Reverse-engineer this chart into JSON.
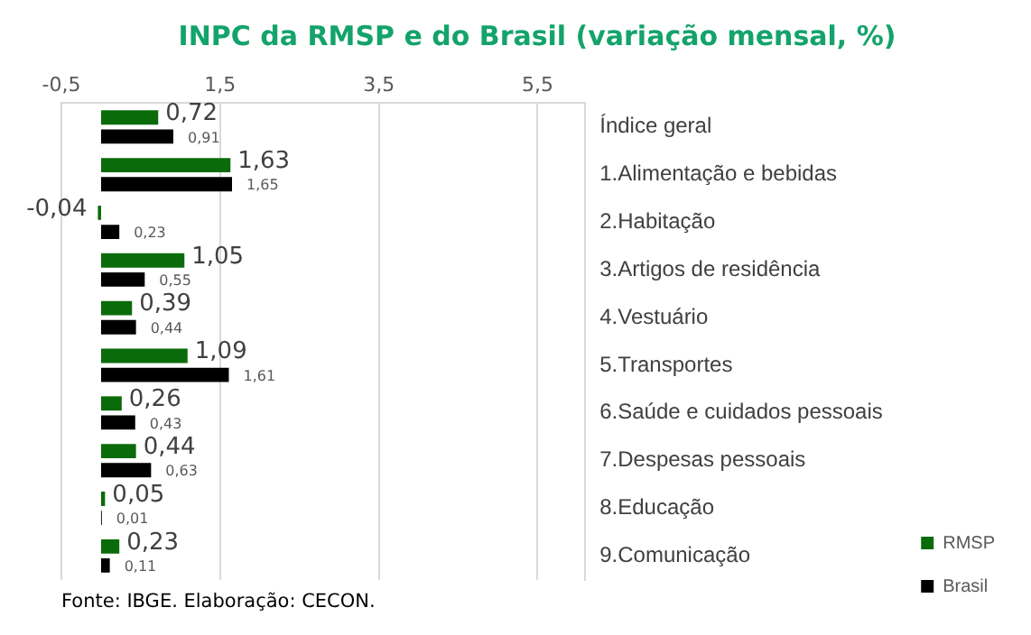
{
  "chart_data": {
    "type": "bar",
    "orientation": "horizontal",
    "title": "INPC da RMSP e do Brasil (variação mensal, %)",
    "annotations": [
      "Fonte: IBGE. Elaboração: CECON."
    ],
    "categories": [
      "Índice geral",
      "1.Alimentação e bebidas",
      "2.Habitação",
      "3.Artigos de residência",
      "4.Vestuário",
      "5.Transportes",
      "6.Saúde e cuidados pessoais",
      "7.Despesas pessoais",
      "8.Educação",
      "9.Comunicação"
    ],
    "series": [
      {
        "name": "RMSP",
        "color": "#0a6b0a",
        "values": [
          0.72,
          1.63,
          -0.04,
          1.05,
          0.39,
          1.09,
          0.26,
          0.44,
          0.05,
          0.23
        ],
        "value_labels": [
          "0,72",
          "1,63",
          "-0,04",
          "1,05",
          "0,39",
          "1,09",
          "0,26",
          "0,44",
          "0,05",
          "0,23"
        ]
      },
      {
        "name": "Brasil",
        "color": "#000000",
        "values": [
          0.91,
          1.65,
          0.23,
          0.55,
          0.44,
          1.61,
          0.43,
          0.63,
          0.01,
          0.11
        ],
        "value_labels": [
          "0,91",
          "1,65",
          "0,23",
          "0,55",
          "0,44",
          "1,61",
          "0,43",
          "0,63",
          "0,01",
          "0,11"
        ]
      }
    ],
    "xlim": [
      -0.5,
      6.1
    ],
    "xticks": [
      {
        "value": -0.5,
        "label": "-0,5"
      },
      {
        "value": 1.5,
        "label": "1,5"
      },
      {
        "value": 3.5,
        "label": "3,5"
      },
      {
        "value": 5.5,
        "label": "5,5"
      }
    ],
    "grid": "x",
    "legend": "bottom right"
  }
}
